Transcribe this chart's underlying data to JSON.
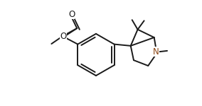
{
  "bg_color": "#ffffff",
  "line_color": "#1a1a1a",
  "n_color": "#8B4513",
  "lw": 1.4,
  "fig_width": 2.84,
  "fig_height": 1.5,
  "dpi": 100,
  "xlim": [
    0,
    10
  ],
  "ylim": [
    0,
    5.27
  ]
}
